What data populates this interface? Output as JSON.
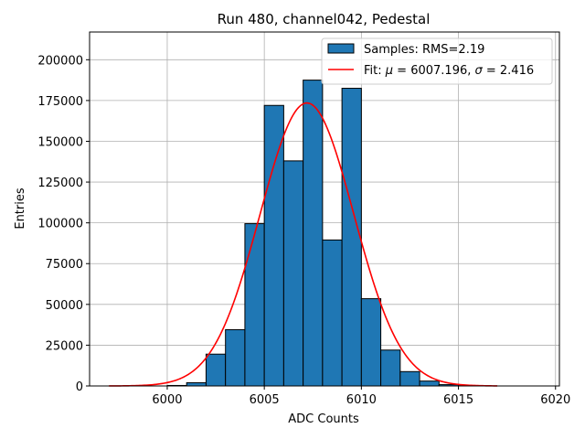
{
  "chart_data": {
    "type": "bar",
    "subtype": "histogram",
    "title": "Run 480, channel042, Pedestal",
    "xlabel": "ADC Counts",
    "ylabel": "Entries",
    "xlim": [
      5996,
      6020.2
    ],
    "ylim": [
      0,
      217000
    ],
    "xticks": [
      6000,
      6005,
      6010,
      6015,
      6020
    ],
    "yticks": [
      0,
      25000,
      50000,
      75000,
      100000,
      125000,
      150000,
      175000,
      200000
    ],
    "grid": true,
    "bin_width": 1,
    "bins": [
      {
        "left": 6000,
        "count": 300
      },
      {
        "left": 6001,
        "count": 2000
      },
      {
        "left": 6002,
        "count": 19500
      },
      {
        "left": 6003,
        "count": 34500
      },
      {
        "left": 6004,
        "count": 99500
      },
      {
        "left": 6005,
        "count": 172000
      },
      {
        "left": 6006,
        "count": 138000
      },
      {
        "left": 6007,
        "count": 187500
      },
      {
        "left": 6008,
        "count": 89500
      },
      {
        "left": 6009,
        "count": 182500
      },
      {
        "left": 6010,
        "count": 53500
      },
      {
        "left": 6011,
        "count": 22000
      },
      {
        "left": 6012,
        "count": 8800
      },
      {
        "left": 6013,
        "count": 3000
      },
      {
        "left": 6014,
        "count": 800
      },
      {
        "left": 6015,
        "count": 200
      }
    ],
    "fit": {
      "mu": 6007.196,
      "sigma": 2.416,
      "amplitude": 173500,
      "x_range": [
        5997,
        6017
      ]
    },
    "legend": {
      "position": "top-right",
      "entries": [
        {
          "label": "Samples: RMS=2.19",
          "kind": "patch"
        },
        {
          "label_prefix": "Fit: ",
          "mu_symbol": "μ",
          "mu_text": " = 6007.196, ",
          "sigma_symbol": "σ",
          "sigma_text": " = 2.416",
          "kind": "line"
        }
      ]
    },
    "colors": {
      "bar_fill": "#1f77b4",
      "bar_edge": "#000000",
      "fit_line": "#ff0000",
      "grid": "#b0b0b0"
    }
  }
}
